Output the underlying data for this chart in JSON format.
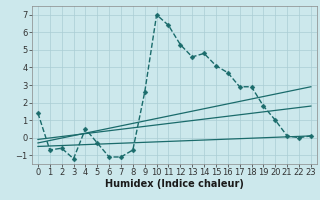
{
  "background_color": "#cce8ec",
  "grid_color": "#aacdd4",
  "line_color": "#1a6b6b",
  "series_main": {
    "x": [
      0,
      1,
      2,
      3,
      4,
      5,
      6,
      7,
      8,
      9,
      10,
      11,
      12,
      13,
      14,
      15,
      16,
      17,
      18,
      19,
      20,
      21,
      22,
      23
    ],
    "y": [
      1.4,
      -0.7,
      -0.6,
      -1.2,
      0.5,
      -0.3,
      -1.1,
      -1.1,
      -0.7,
      2.6,
      7.0,
      6.4,
      5.3,
      4.6,
      4.8,
      4.1,
      3.7,
      2.9,
      2.9,
      1.8,
      1.0,
      0.1,
      0.0,
      0.1
    ]
  },
  "trend_lines": [
    {
      "x": [
        0,
        23
      ],
      "y": [
        -0.3,
        2.9
      ]
    },
    {
      "x": [
        0,
        23
      ],
      "y": [
        -0.1,
        1.8
      ]
    },
    {
      "x": [
        0,
        23
      ],
      "y": [
        -0.5,
        0.1
      ]
    }
  ],
  "xlim": [
    -0.5,
    23.5
  ],
  "ylim": [
    -1.5,
    7.5
  ],
  "xticks": [
    0,
    1,
    2,
    3,
    4,
    5,
    6,
    7,
    8,
    9,
    10,
    11,
    12,
    13,
    14,
    15,
    16,
    17,
    18,
    19,
    20,
    21,
    22,
    23
  ],
  "yticks": [
    -1,
    0,
    1,
    2,
    3,
    4,
    5,
    6,
    7
  ],
  "xlabel": "Humidex (Indice chaleur)",
  "xlabel_fontsize": 7,
  "tick_fontsize": 6,
  "marker_size": 2.5,
  "main_linewidth": 1.0,
  "trend_linewidth": 0.9
}
